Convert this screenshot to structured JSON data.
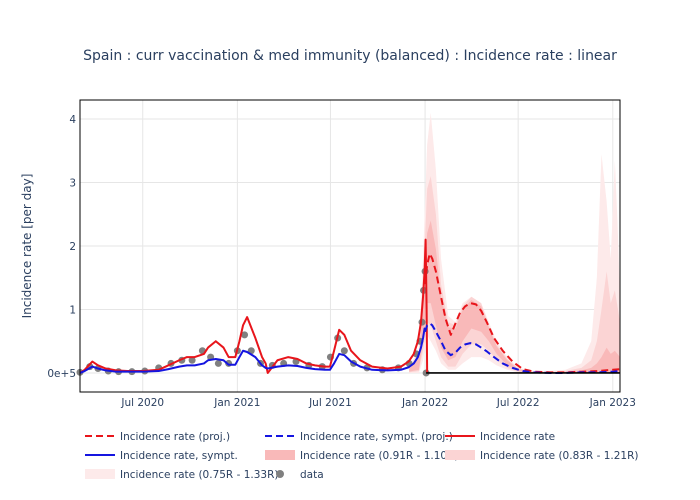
{
  "chart_data": {
    "type": "line",
    "title": "Spain : curr vaccination & med immunity (balanced) : Incidence rate : linear",
    "ylabel": "Incidence rate [per day]",
    "xlabel": "",
    "x_range": [
      "2020-03-01",
      "2023-01-15"
    ],
    "ylim": [
      -0.3,
      4.3
    ],
    "x_ticks": [
      {
        "date": "2020-07-01",
        "label": "Jul 2020"
      },
      {
        "date": "2021-01-01",
        "label": "Jan 2021"
      },
      {
        "date": "2021-07-01",
        "label": "Jul 2021"
      },
      {
        "date": "2022-01-01",
        "label": "Jan 2022"
      },
      {
        "date": "2022-07-01",
        "label": "Jul 2022"
      },
      {
        "date": "2023-01-01",
        "label": "Jan 2023"
      }
    ],
    "y_ticks": [
      {
        "value": 0,
        "label": "0e+5"
      },
      {
        "value": 1,
        "label": "1"
      },
      {
        "value": 2,
        "label": "2"
      },
      {
        "value": 3,
        "label": "3"
      },
      {
        "value": 4,
        "label": "4"
      }
    ],
    "grid": true,
    "legend_position": "bottom",
    "series": [
      {
        "name": "Incidence rate (0.75R - 1.33R)",
        "style": "band",
        "color": "#fdeaea",
        "x": [
          "2021-12-01",
          "2021-12-20",
          "2021-12-28",
          "2022-01-05",
          "2022-01-12",
          "2022-01-22",
          "2022-02-01",
          "2022-02-15",
          "2022-03-01",
          "2022-03-15",
          "2022-04-01",
          "2022-04-20",
          "2022-05-05",
          "2022-05-20",
          "2022-06-10",
          "2022-07-01",
          "2022-08-01",
          "2022-09-01",
          "2022-10-01",
          "2022-11-01",
          "2022-11-20",
          "2022-12-01",
          "2022-12-10",
          "2022-12-20",
          "2022-12-28",
          "2023-01-05",
          "2023-01-10",
          "2023-01-15"
        ],
        "upper": [
          0.1,
          0.35,
          1.8,
          3.6,
          4.1,
          3.2,
          1.8,
          0.9,
          0.8,
          1.1,
          1.2,
          1.1,
          0.8,
          0.5,
          0.25,
          0.08,
          0.03,
          0.03,
          0.05,
          0.15,
          0.5,
          1.5,
          3.45,
          2.7,
          1.8,
          3.35,
          2.4,
          1.2
        ],
        "lower": [
          0,
          0,
          0.2,
          0.6,
          0.5,
          0.35,
          0.15,
          0.05,
          0.05,
          0.15,
          0.25,
          0.25,
          0.2,
          0.12,
          0.05,
          0.01,
          0,
          0,
          0,
          0,
          0,
          0,
          0,
          0,
          0,
          0,
          0,
          0
        ]
      },
      {
        "name": "Incidence rate (0.83R - 1.21R)",
        "style": "band",
        "color": "#fbd4d4",
        "x": [
          "2021-12-01",
          "2021-12-20",
          "2021-12-28",
          "2022-01-05",
          "2022-01-12",
          "2022-01-22",
          "2022-02-01",
          "2022-02-15",
          "2022-03-01",
          "2022-03-15",
          "2022-04-01",
          "2022-04-20",
          "2022-05-05",
          "2022-05-20",
          "2022-06-10",
          "2022-07-01",
          "2022-08-01",
          "2022-09-01",
          "2022-10-01",
          "2022-11-01",
          "2022-11-20",
          "2022-12-01",
          "2022-12-10",
          "2022-12-20",
          "2022-12-28",
          "2023-01-05",
          "2023-01-10",
          "2023-01-15"
        ],
        "upper": [
          0.08,
          0.3,
          1.4,
          2.9,
          3.1,
          2.5,
          1.4,
          0.8,
          0.75,
          1.05,
          1.2,
          1.1,
          0.75,
          0.45,
          0.22,
          0.07,
          0.02,
          0.02,
          0.03,
          0.08,
          0.2,
          0.5,
          1.0,
          1.6,
          1.1,
          1.3,
          1.05,
          0.8
        ],
        "lower": [
          0.01,
          0.03,
          0.35,
          0.8,
          0.75,
          0.5,
          0.25,
          0.1,
          0.1,
          0.3,
          0.45,
          0.45,
          0.35,
          0.2,
          0.08,
          0.02,
          0,
          0,
          0,
          0,
          0,
          0,
          0,
          0,
          0,
          0,
          0,
          0
        ]
      },
      {
        "name": "Incidence rate (0.91R - 1.10R)",
        "style": "band",
        "color": "#f9b9b9",
        "x": [
          "2021-12-01",
          "2021-12-20",
          "2021-12-28",
          "2022-01-05",
          "2022-01-12",
          "2022-01-22",
          "2022-02-01",
          "2022-02-15",
          "2022-03-01",
          "2022-03-15",
          "2022-04-01",
          "2022-04-20",
          "2022-05-05",
          "2022-05-20",
          "2022-06-10",
          "2022-07-01",
          "2022-08-01",
          "2022-09-01",
          "2022-10-01",
          "2022-11-01",
          "2022-11-20",
          "2022-12-01",
          "2022-12-10",
          "2022-12-20",
          "2022-12-28",
          "2023-01-05",
          "2023-01-10",
          "2023-01-15"
        ],
        "upper": [
          0.06,
          0.25,
          1.1,
          2.2,
          2.4,
          1.95,
          1.2,
          0.72,
          0.7,
          1.0,
          1.15,
          1.05,
          0.72,
          0.42,
          0.2,
          0.06,
          0.01,
          0.01,
          0.02,
          0.04,
          0.08,
          0.15,
          0.25,
          0.4,
          0.3,
          0.35,
          0.3,
          0.25
        ],
        "lower": [
          0.02,
          0.05,
          0.5,
          1.1,
          1.1,
          0.75,
          0.4,
          0.2,
          0.25,
          0.5,
          0.7,
          0.65,
          0.5,
          0.3,
          0.12,
          0.03,
          0,
          0,
          0,
          0,
          0,
          0,
          0,
          0,
          0,
          0,
          0,
          0
        ]
      },
      {
        "name": "data",
        "style": "markers",
        "color": "#808080",
        "x": [
          "2020-03-01",
          "2020-03-20",
          "2020-04-05",
          "2020-04-25",
          "2020-05-15",
          "2020-06-10",
          "2020-07-05",
          "2020-08-01",
          "2020-08-25",
          "2020-09-15",
          "2020-10-05",
          "2020-10-25",
          "2020-11-10",
          "2020-11-25",
          "2020-12-15",
          "2021-01-01",
          "2021-01-15",
          "2021-01-28",
          "2021-02-15",
          "2021-03-10",
          "2021-04-01",
          "2021-04-25",
          "2021-05-20",
          "2021-06-15",
          "2021-07-01",
          "2021-07-15",
          "2021-07-28",
          "2021-08-15",
          "2021-09-10",
          "2021-10-10",
          "2021-11-10",
          "2021-12-01",
          "2021-12-15",
          "2021-12-22",
          "2021-12-26",
          "2021-12-29",
          "2022-01-01",
          "2022-01-03"
        ],
        "y": [
          0.01,
          0.1,
          0.07,
          0.03,
          0.02,
          0.02,
          0.03,
          0.08,
          0.15,
          0.2,
          0.2,
          0.35,
          0.25,
          0.15,
          0.15,
          0.35,
          0.6,
          0.35,
          0.15,
          0.12,
          0.15,
          0.18,
          0.12,
          0.1,
          0.25,
          0.55,
          0.35,
          0.15,
          0.08,
          0.05,
          0.08,
          0.15,
          0.3,
          0.5,
          0.8,
          1.3,
          1.6,
          0.0
        ]
      },
      {
        "name": "Incidence rate",
        "style": "solid",
        "color": "#e8151b",
        "x": [
          "2020-03-01",
          "2020-03-10",
          "2020-03-25",
          "2020-04-05",
          "2020-04-20",
          "2020-05-10",
          "2020-06-01",
          "2020-07-01",
          "2020-08-01",
          "2020-08-20",
          "2020-09-10",
          "2020-09-25",
          "2020-10-10",
          "2020-10-28",
          "2020-11-05",
          "2020-11-20",
          "2020-12-05",
          "2020-12-15",
          "2020-12-28",
          "2021-01-05",
          "2021-01-12",
          "2021-01-20",
          "2021-02-05",
          "2021-02-18",
          "2021-02-25",
          "2021-03-01",
          "2021-03-20",
          "2021-04-10",
          "2021-04-28",
          "2021-05-15",
          "2021-06-01",
          "2021-06-20",
          "2021-06-30",
          "2021-07-08",
          "2021-07-18",
          "2021-07-28",
          "2021-08-10",
          "2021-08-28",
          "2021-09-20",
          "2021-10-20",
          "2021-11-15",
          "2021-11-30",
          "2021-12-10",
          "2021-12-18",
          "2021-12-24",
          "2021-12-28",
          "2021-12-31",
          "2022-01-02",
          "2022-01-04",
          "2022-01-05"
        ],
        "y": [
          0.0,
          0.05,
          0.18,
          0.12,
          0.07,
          0.04,
          0.03,
          0.03,
          0.05,
          0.12,
          0.2,
          0.25,
          0.25,
          0.3,
          0.4,
          0.5,
          0.4,
          0.25,
          0.25,
          0.5,
          0.75,
          0.88,
          0.55,
          0.25,
          0.15,
          0.0,
          0.2,
          0.25,
          0.22,
          0.15,
          0.12,
          0.1,
          0.1,
          0.35,
          0.68,
          0.6,
          0.35,
          0.2,
          0.1,
          0.07,
          0.1,
          0.18,
          0.3,
          0.5,
          0.8,
          1.2,
          1.6,
          2.1,
          1.0,
          0.0
        ]
      },
      {
        "name": "Incidence rate, sympt.",
        "style": "solid",
        "color": "#1515e0",
        "x": [
          "2020-03-01",
          "2020-03-10",
          "2020-03-25",
          "2020-04-05",
          "2020-04-20",
          "2020-05-10",
          "2020-06-01",
          "2020-07-01",
          "2020-08-01",
          "2020-08-20",
          "2020-09-10",
          "2020-09-25",
          "2020-10-10",
          "2020-10-28",
          "2020-11-05",
          "2020-11-20",
          "2020-12-05",
          "2020-12-15",
          "2020-12-28",
          "2021-01-05",
          "2021-01-12",
          "2021-01-20",
          "2021-02-05",
          "2021-02-18",
          "2021-02-25",
          "2021-03-01",
          "2021-03-20",
          "2021-04-10",
          "2021-04-28",
          "2021-05-15",
          "2021-06-01",
          "2021-06-20",
          "2021-06-30",
          "2021-07-08",
          "2021-07-18",
          "2021-07-28",
          "2021-08-10",
          "2021-08-28",
          "2021-09-20",
          "2021-10-20",
          "2021-11-15",
          "2021-11-30",
          "2021-12-10",
          "2021-12-18",
          "2021-12-24",
          "2021-12-28",
          "2021-12-31",
          "2022-01-02"
        ],
        "y": [
          0.0,
          0.03,
          0.1,
          0.07,
          0.04,
          0.02,
          0.02,
          0.02,
          0.03,
          0.06,
          0.1,
          0.12,
          0.12,
          0.15,
          0.2,
          0.22,
          0.2,
          0.13,
          0.13,
          0.25,
          0.35,
          0.33,
          0.25,
          0.12,
          0.08,
          0.07,
          0.1,
          0.12,
          0.11,
          0.08,
          0.06,
          0.05,
          0.05,
          0.15,
          0.3,
          0.28,
          0.18,
          0.1,
          0.05,
          0.04,
          0.05,
          0.09,
          0.15,
          0.25,
          0.4,
          0.55,
          0.7,
          0.65
        ]
      },
      {
        "name": "Incidence rate (proj.)",
        "style": "dash",
        "color": "#e8151b",
        "x": [
          "2022-01-01",
          "2022-01-05",
          "2022-01-10",
          "2022-01-15",
          "2022-01-22",
          "2022-02-01",
          "2022-02-10",
          "2022-02-20",
          "2022-03-01",
          "2022-03-10",
          "2022-03-20",
          "2022-03-30",
          "2022-04-10",
          "2022-04-20",
          "2022-05-01",
          "2022-05-15",
          "2022-06-01",
          "2022-06-20",
          "2022-07-10",
          "2022-08-01",
          "2022-09-01",
          "2022-10-01",
          "2022-11-01",
          "2022-12-01",
          "2023-01-01",
          "2023-01-15"
        ],
        "y": [
          1.4,
          1.7,
          1.88,
          1.8,
          1.6,
          1.2,
          0.85,
          0.6,
          0.78,
          0.95,
          1.05,
          1.1,
          1.08,
          0.98,
          0.8,
          0.55,
          0.35,
          0.18,
          0.06,
          0.02,
          0.01,
          0.01,
          0.02,
          0.03,
          0.05,
          0.06
        ]
      },
      {
        "name": "Incidence rate, sympt. (proj.)",
        "style": "dash",
        "color": "#1515e0",
        "x": [
          "2022-01-01",
          "2022-01-05",
          "2022-01-10",
          "2022-01-15",
          "2022-01-22",
          "2022-02-01",
          "2022-02-10",
          "2022-02-20",
          "2022-03-01",
          "2022-03-10",
          "2022-03-20",
          "2022-03-30",
          "2022-04-10",
          "2022-04-20",
          "2022-05-01",
          "2022-05-15",
          "2022-06-01",
          "2022-06-20",
          "2022-07-10",
          "2022-08-01",
          "2022-09-01",
          "2022-10-01",
          "2022-11-01",
          "2022-12-01",
          "2023-01-01",
          "2023-01-15"
        ],
        "y": [
          0.65,
          0.75,
          0.78,
          0.75,
          0.65,
          0.5,
          0.35,
          0.28,
          0.32,
          0.4,
          0.45,
          0.47,
          0.45,
          0.4,
          0.34,
          0.25,
          0.15,
          0.08,
          0.03,
          0.01,
          0.0,
          0.0,
          0.01,
          0.01,
          0.02,
          0.03
        ]
      },
      {
        "name": "",
        "style": "baseline",
        "color": "#000000",
        "x": [
          "2022-01-03",
          "2023-01-15"
        ],
        "y": [
          0,
          0
        ]
      }
    ]
  }
}
